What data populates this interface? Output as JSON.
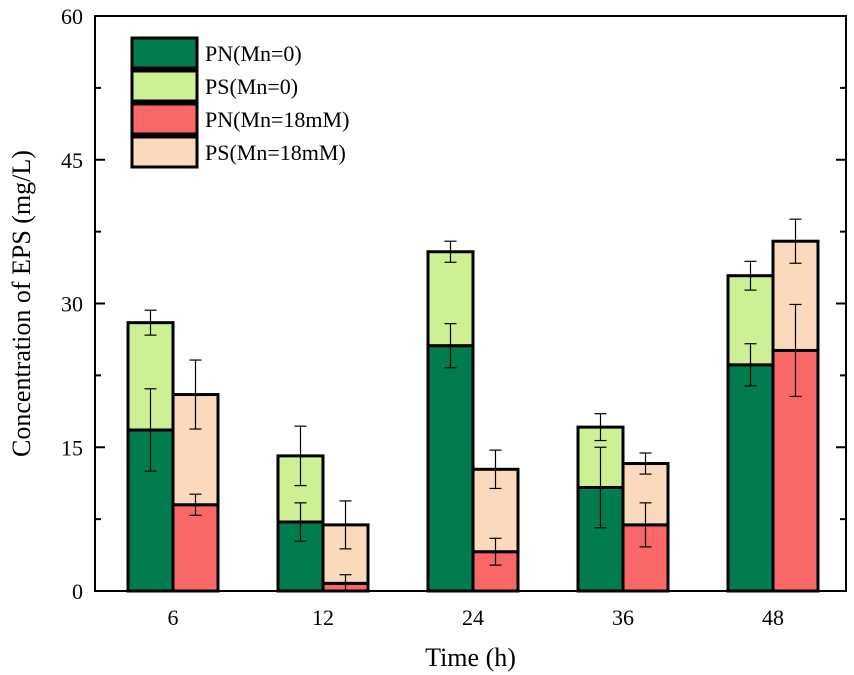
{
  "chart_data": {
    "type": "bar",
    "stacked": true,
    "title": "",
    "xlabel": "Time (h)",
    "ylabel": "Concentration of EPS (mg/L)",
    "ylim": [
      0,
      60
    ],
    "yticks": [
      "0",
      "15",
      "30",
      "45",
      "60"
    ],
    "categories": [
      "6",
      "12",
      "24",
      "36",
      "48"
    ],
    "groups": [
      {
        "name": "Mn=0",
        "stack": [
          {
            "name": "PN(Mn=0)",
            "color": "#007c4e",
            "values": [
              16.8,
              7.2,
              25.6,
              10.8,
              23.6
            ],
            "errors": [
              4.3,
              2.0,
              2.3,
              4.2,
              2.2
            ]
          },
          {
            "name": "PS(Mn=0)",
            "color": "#cdf095",
            "values": [
              11.2,
              6.9,
              9.8,
              6.3,
              9.3
            ],
            "errors": [
              1.3,
              3.1,
              1.1,
              1.4,
              1.5
            ]
          }
        ]
      },
      {
        "name": "Mn=18mM",
        "stack": [
          {
            "name": "PN(Mn=18mM)",
            "color": "#f96767",
            "values": [
              9.0,
              0.8,
              4.1,
              6.9,
              25.1
            ],
            "errors": [
              1.1,
              0.9,
              1.4,
              2.3,
              4.8
            ]
          },
          {
            "name": "PS(Mn=18mM)",
            "color": "#fbd9bd",
            "values": [
              11.5,
              6.1,
              8.6,
              6.4,
              11.4
            ],
            "errors": [
              3.6,
              2.5,
              2.0,
              1.1,
              2.3
            ]
          }
        ]
      }
    ],
    "legend": {
      "position": "top-left",
      "entries": [
        {
          "label": "PN(Mn=0)",
          "color": "#007c4e"
        },
        {
          "label": "PS(Mn=0)",
          "color": "#cdf095"
        },
        {
          "label": "PN(Mn=18mM)",
          "color": "#f96767"
        },
        {
          "label": "PS(Mn=18mM)",
          "color": "#fbd9bd"
        }
      ]
    }
  }
}
